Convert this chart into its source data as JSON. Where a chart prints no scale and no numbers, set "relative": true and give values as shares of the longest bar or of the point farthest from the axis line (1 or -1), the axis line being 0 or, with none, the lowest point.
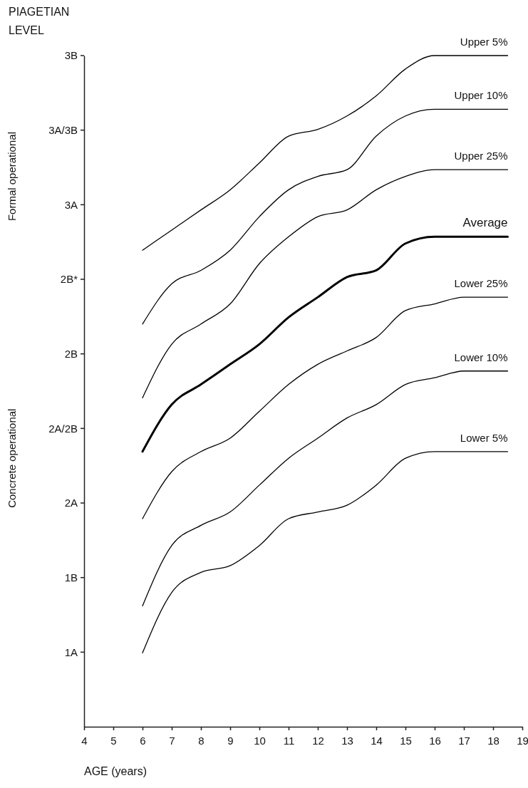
{
  "chart_data": {
    "type": "line",
    "xlabel": "AGE (years)",
    "ylabel": "PIAGETIAN LEVEL",
    "relative": true,
    "x": [
      6,
      7,
      8,
      9,
      10,
      11,
      12,
      13,
      14,
      15,
      16,
      17,
      18.5
    ],
    "series": [
      {
        "name": "Upper 5%",
        "color": "#000000",
        "values": [
          0.71,
          0.74,
          0.77,
          0.8,
          0.84,
          0.88,
          0.89,
          0.91,
          0.94,
          0.98,
          1,
          1,
          1
        ]
      },
      {
        "name": "Upper 10%",
        "color": "#000000",
        "values": [
          0.6,
          0.66,
          0.68,
          0.71,
          0.76,
          0.8,
          0.82,
          0.83,
          0.88,
          0.91,
          0.92,
          0.92,
          0.92
        ]
      },
      {
        "name": "Upper 25%",
        "color": "#000000",
        "values": [
          0.49,
          0.57,
          0.6,
          0.63,
          0.69,
          0.73,
          0.76,
          0.77,
          0.8,
          0.82,
          0.83,
          0.83,
          0.83
        ]
      },
      {
        "name": "Average",
        "color": "#000000",
        "values": [
          0.41,
          0.48,
          0.51,
          0.54,
          0.57,
          0.61,
          0.64,
          0.67,
          0.68,
          0.72,
          0.73,
          0.73,
          0.73
        ]
      },
      {
        "name": "Lower 25%",
        "color": "#000000",
        "values": [
          0.31,
          0.38,
          0.41,
          0.43,
          0.47,
          0.51,
          0.54,
          0.56,
          0.58,
          0.62,
          0.63,
          0.64,
          0.64
        ]
      },
      {
        "name": "Lower 10%",
        "color": "#000000",
        "values": [
          0.18,
          0.27,
          0.3,
          0.32,
          0.36,
          0.4,
          0.43,
          0.46,
          0.48,
          0.51,
          0.52,
          0.53,
          0.53
        ]
      },
      {
        "name": "Lower 5%",
        "color": "#000000",
        "values": [
          0.11,
          0.2,
          0.23,
          0.24,
          0.27,
          0.31,
          0.32,
          0.33,
          0.36,
          0.4,
          0.41,
          0.41,
          0.41
        ]
      }
    ],
    "xlim": [
      4,
      19
    ],
    "xticks": [
      4,
      5,
      6,
      7,
      8,
      9,
      10,
      11,
      12,
      13,
      14,
      15,
      16,
      17,
      18,
      19
    ],
    "annotations": [
      "Formal operational",
      "Concrete operational",
      "1A",
      "1B",
      "2A",
      "2A/2B",
      "2B",
      "2B*",
      "3A",
      "3A/3B",
      "3B"
    ],
    "marker": "none",
    "line_style": "solid"
  }
}
